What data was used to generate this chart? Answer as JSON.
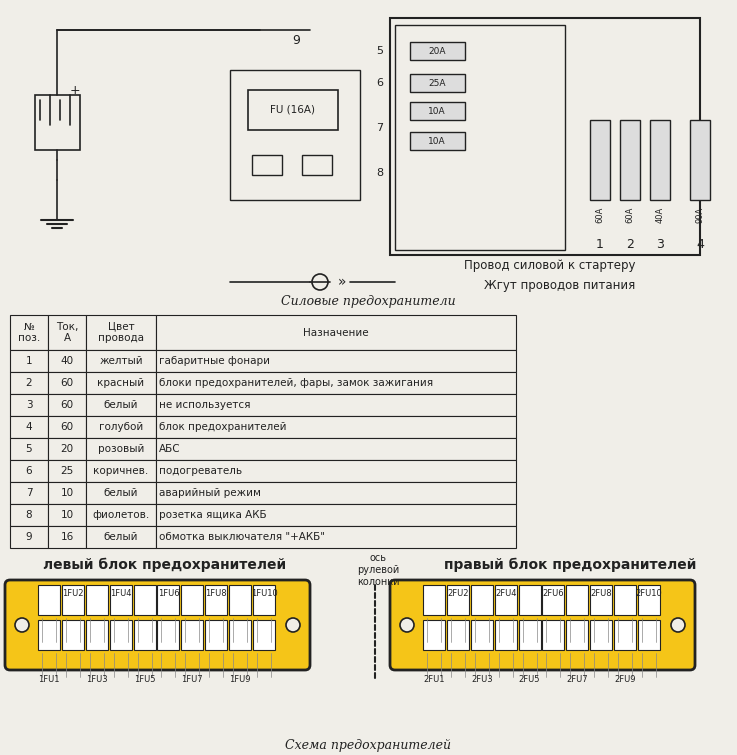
{
  "title_circuit": "Силовые предохранители",
  "title_schema": "Схема предохранителей",
  "table_headers": [
    "№\nпоз.",
    "Ток,\nА",
    "Цвет\nпровода",
    "Назначение"
  ],
  "table_rows": [
    [
      "1",
      "40",
      "желтый",
      "габаритные фонари"
    ],
    [
      "2",
      "60",
      "красный",
      "блоки предохранителей, фары, замок зажигания"
    ],
    [
      "3",
      "60",
      "белый",
      "не используется"
    ],
    [
      "4",
      "60",
      "голубой",
      "блок предохранителей"
    ],
    [
      "5",
      "20",
      "розовый",
      "АБС"
    ],
    [
      "6",
      "25",
      "коричнев.",
      "подогреватель"
    ],
    [
      "7",
      "10",
      "белый",
      "аварийный режим"
    ],
    [
      "8",
      "10",
      "фиолетов.",
      "розетка ящика АКБ"
    ],
    [
      "9",
      "16",
      "белый",
      "обмотка выключателя \"+АКБ\""
    ]
  ],
  "left_block_title": "левый блок предохранителей",
  "right_block_title": "правый блок предохранителей",
  "center_label": "ось\nрулевой\nколонки",
  "left_top_labels": [
    "1FU2",
    "1FU4",
    "1FU6",
    "1FU8",
    "1FU10"
  ],
  "left_bottom_labels": [
    "1FU1",
    "1FU3",
    "1FU5",
    "1FU7",
    "1FU9"
  ],
  "right_top_labels": [
    "2FU2",
    "2FU4",
    "2FU6",
    "2FU8",
    "2FU10"
  ],
  "right_bottom_labels": [
    "2FU1",
    "2FU3",
    "2FU5",
    "2FU7",
    "2FU9"
  ],
  "fuse_block_color": "#F5C518",
  "fuse_slot_color": "#FFFFFF",
  "bg_color": "#F0EEE8",
  "line_color": "#222222",
  "fu_label": "FU (16A)"
}
